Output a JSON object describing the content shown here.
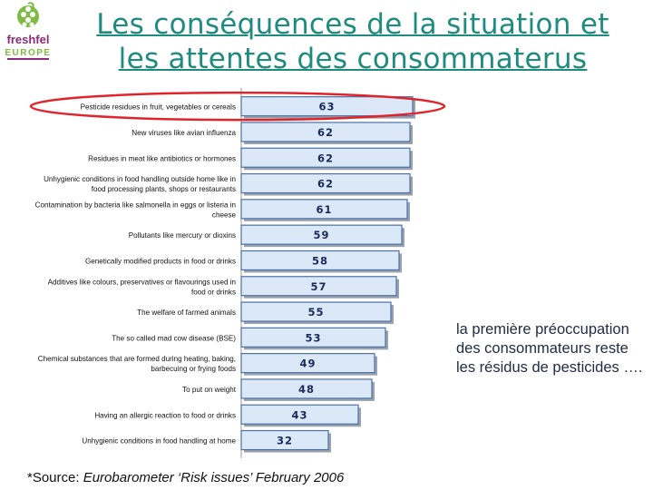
{
  "logo": {
    "line1": "freshfel",
    "line2": "EUROPE"
  },
  "slide_title": {
    "line1": "Les conséquences de la situation et",
    "line2": "les attentes des consommaterus"
  },
  "chart_data": {
    "type": "bar",
    "orientation": "horizontal",
    "categories": [
      [
        "Pesticide residues in fruit, vegetables or cereals"
      ],
      [
        "New viruses like avian influenza"
      ],
      [
        "Residues in meat like antibiotics or hormones"
      ],
      [
        "Unhygienic conditions in food handling outside home like in",
        "food processing plants, shops or restaurants"
      ],
      [
        "Contamination by bacteria like salmonella in eggs or listeria in",
        "cheese"
      ],
      [
        "Pollutants like mercury or dioxins"
      ],
      [
        "Genetically modified products in food or drinks"
      ],
      [
        "Additives like colours, preservatives or flavourings used in",
        "food or drinks"
      ],
      [
        "The welfare of farmed animals"
      ],
      [
        "The so called mad cow disease (BSE)"
      ],
      [
        "Chemical substances that are formed during heating, baking,",
        "barbecuing or frying foods"
      ],
      [
        "To put on weight"
      ],
      [
        "Having an allergic reaction to food or drinks"
      ],
      [
        "Unhygienic conditions in food handling at home"
      ]
    ],
    "values": [
      63,
      62,
      62,
      62,
      61,
      59,
      58,
      57,
      55,
      53,
      49,
      48,
      43,
      32
    ],
    "xlim": [
      0,
      70
    ],
    "highlight_index": 0,
    "colors": {
      "bar": "#dbe8f7",
      "bar_border": "#4b6fa8",
      "value_text": "#1a2a5a",
      "highlight": "#e0242c",
      "label": "#111111"
    }
  },
  "note": "la première préoccupation des consommateurs reste les résidus de pesticides ….",
  "source": {
    "prefix": "*Source: ",
    "italic": "Eurobarometer ‘Risk issues’ February 2006"
  }
}
